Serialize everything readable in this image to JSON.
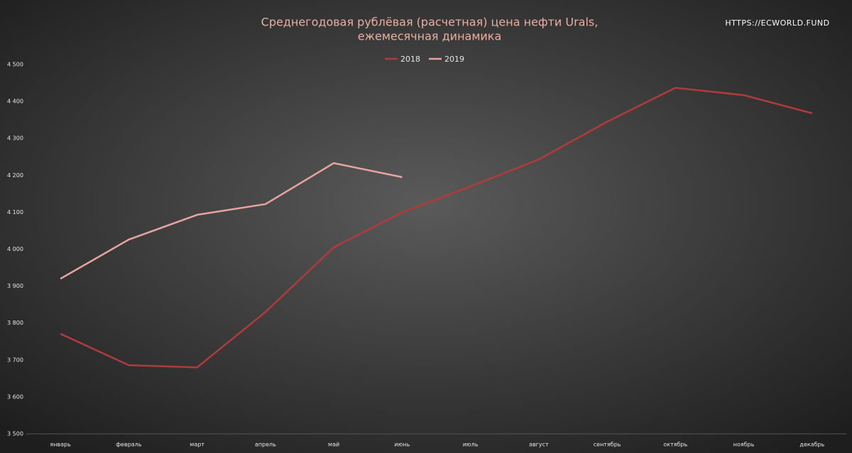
{
  "chart_data": {
    "type": "line",
    "title": [
      "Среднегодовая рублёвая (расчетная) цена нефти Urals,",
      "ежемесячная динамика"
    ],
    "source": "HTTPS://ECWORLD.FUND",
    "categories": [
      "январь",
      "февраль",
      "март",
      "апрель",
      "май",
      "июнь",
      "июль",
      "август",
      "сентябрь",
      "октябрь",
      "ноябрь",
      "декабрь"
    ],
    "series": [
      {
        "name": "2018",
        "color": "#b03b3b",
        "values": [
          3771,
          3686,
          3680,
          3830,
          4005,
          4100,
          4170,
          4243,
          4345,
          4437,
          4417,
          4368
        ]
      },
      {
        "name": "2019",
        "color": "#e6a4a2",
        "values": [
          3920,
          4026,
          4093,
          4122,
          4233,
          4195,
          null,
          null,
          null,
          null,
          null,
          null
        ]
      }
    ],
    "ylim": [
      3500,
      4500
    ],
    "yticks": [
      {
        "value": 3500,
        "label": "3 500"
      },
      {
        "value": 3600,
        "label": "3 600"
      },
      {
        "value": 3700,
        "label": "3 700"
      },
      {
        "value": 3800,
        "label": "3 800"
      },
      {
        "value": 3900,
        "label": "3 900"
      },
      {
        "value": 4000,
        "label": "4 000"
      },
      {
        "value": 4100,
        "label": "4 100"
      },
      {
        "value": 4200,
        "label": "4 200"
      },
      {
        "value": 4300,
        "label": "4 300"
      },
      {
        "value": 4400,
        "label": "4 400"
      },
      {
        "value": 4500,
        "label": "4 500"
      }
    ],
    "legend": "top"
  }
}
